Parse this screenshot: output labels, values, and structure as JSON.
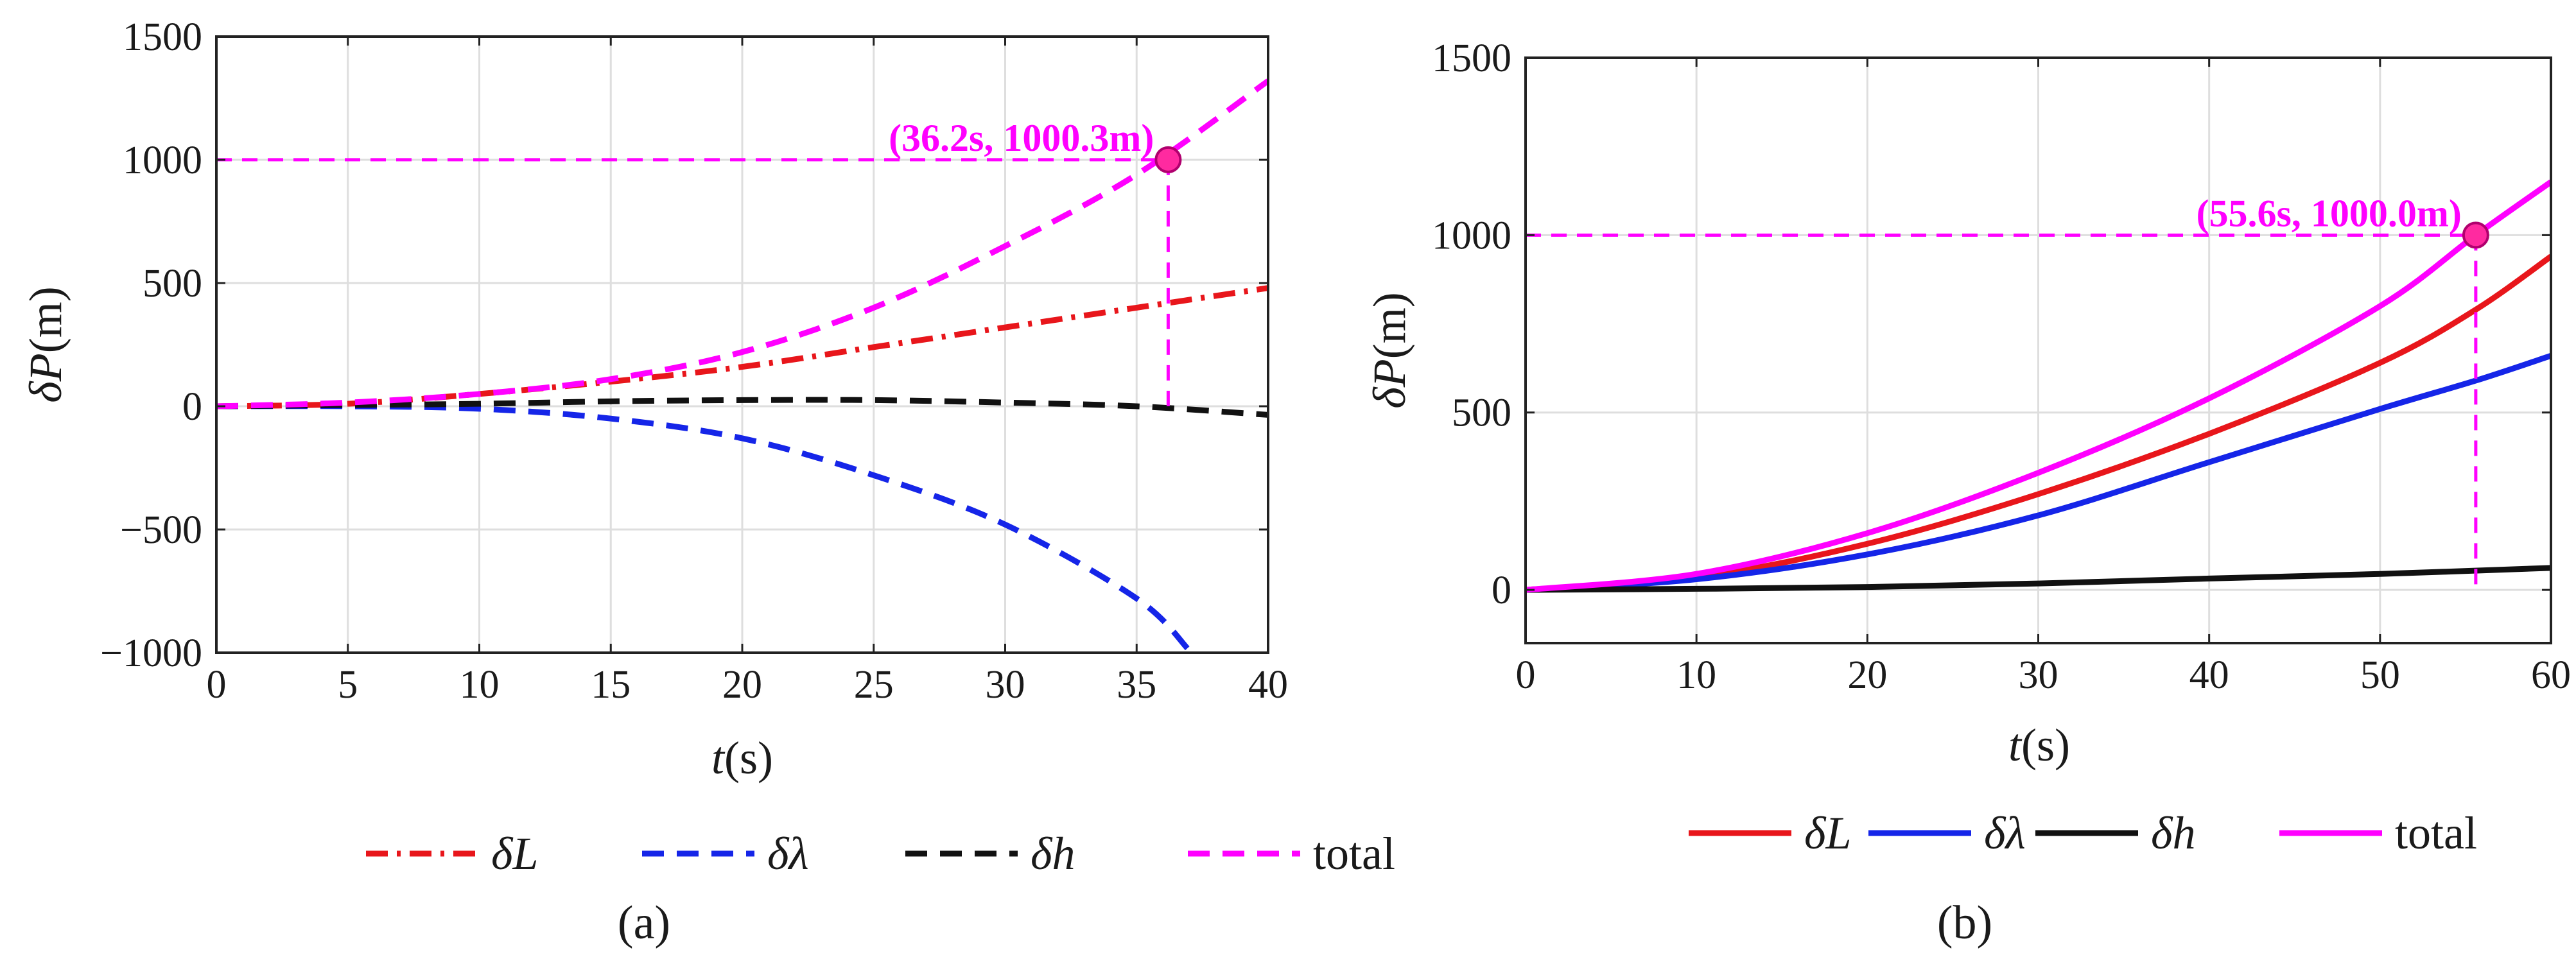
{
  "colors": {
    "red": "#e8161b",
    "blue": "#1525e8",
    "black": "#111111",
    "magenta": "#ff00ff",
    "marker": "#ff2aa0"
  },
  "chart_data": [
    {
      "panel_label": "(a)",
      "type": "line",
      "xlabel": {
        "italic": "t",
        "rest": "(s)"
      },
      "ylabel": {
        "italic": "δP",
        "rest": "(m)"
      },
      "xlim": [
        0,
        40
      ],
      "ylim": [
        -1000,
        1500
      ],
      "xticks": [
        0,
        5,
        10,
        15,
        20,
        25,
        30,
        35,
        40
      ],
      "yticks": [
        -1000,
        -500,
        0,
        500,
        1000,
        1500
      ],
      "ytick_labels": [
        "−1000",
        "−500",
        "0",
        "500",
        "1000",
        "1500"
      ],
      "grid": true,
      "series": [
        {
          "key": "dL",
          "name": "δL",
          "style": "dashdot",
          "color": "#e8161b",
          "x": [
            0,
            5,
            10,
            15,
            20,
            25,
            30,
            35,
            40
          ],
          "y": [
            0,
            10,
            50,
            100,
            160,
            240,
            320,
            400,
            480
          ]
        },
        {
          "key": "dlam",
          "name": "δλ",
          "style": "dashed",
          "color": "#1525e8",
          "x": [
            0,
            5,
            10,
            15,
            20,
            25,
            30,
            35,
            37
          ],
          "y": [
            0,
            0,
            -10,
            -50,
            -130,
            -280,
            -480,
            -780,
            -990
          ]
        },
        {
          "key": "dh",
          "name": "δh",
          "style": "dashed",
          "color": "#111111",
          "x": [
            0,
            5,
            10,
            15,
            20,
            25,
            30,
            35,
            40
          ],
          "y": [
            0,
            5,
            10,
            20,
            25,
            25,
            15,
            0,
            -35
          ]
        },
        {
          "key": "total",
          "name": "total",
          "style": "dashed",
          "color": "#ff00ff",
          "x": [
            0,
            5,
            10,
            15,
            20,
            25,
            30,
            35,
            40
          ],
          "y": [
            0,
            15,
            50,
            110,
            220,
            400,
            650,
            940,
            1320
          ]
        }
      ],
      "annotation": {
        "x": 36.2,
        "y": 1000.3,
        "text": "(36.2s, 1000.3m)"
      },
      "legend": [
        {
          "label": "δL",
          "style": "dashdot",
          "color": "#e8161b"
        },
        {
          "label": "δλ",
          "style": "dashed",
          "color": "#1525e8"
        },
        {
          "label": "δh",
          "style": "dashed",
          "color": "#111111"
        },
        {
          "label": "total",
          "style": "dashed",
          "color": "#ff00ff"
        }
      ],
      "legend_position": "bottom-center"
    },
    {
      "panel_label": "(b)",
      "type": "line",
      "xlabel": {
        "italic": "t",
        "rest": "(s)"
      },
      "ylabel": {
        "italic": "δP",
        "rest": "(m)"
      },
      "xlim": [
        0,
        60
      ],
      "ylim": [
        -150,
        1500
      ],
      "xticks": [
        0,
        10,
        20,
        30,
        40,
        50,
        60
      ],
      "yticks": [
        0,
        500,
        1000,
        1500
      ],
      "ytick_labels": [
        "0",
        "500",
        "1000",
        "1500"
      ],
      "grid": true,
      "series": [
        {
          "key": "dL",
          "name": "δL",
          "style": "solid",
          "color": "#e8161b",
          "x": [
            0,
            10,
            20,
            30,
            40,
            50,
            55.6,
            60
          ],
          "y": [
            0,
            35,
            130,
            270,
            440,
            640,
            790,
            940
          ]
        },
        {
          "key": "dlam",
          "name": "δλ",
          "style": "solid",
          "color": "#1525e8",
          "x": [
            0,
            10,
            20,
            30,
            40,
            50,
            55.6,
            60
          ],
          "y": [
            0,
            30,
            100,
            210,
            360,
            510,
            590,
            660
          ]
        },
        {
          "key": "dh",
          "name": "δh",
          "style": "solid",
          "color": "#111111",
          "x": [
            0,
            10,
            20,
            30,
            40,
            50,
            60
          ],
          "y": [
            0,
            3,
            8,
            18,
            32,
            45,
            62
          ]
        },
        {
          "key": "total",
          "name": "total",
          "style": "solid",
          "color": "#ff00ff",
          "x": [
            0,
            10,
            20,
            30,
            40,
            50,
            55.6,
            60
          ],
          "y": [
            0,
            45,
            160,
            330,
            540,
            800,
            1000,
            1150
          ]
        }
      ],
      "annotation": {
        "x": 55.6,
        "y": 1000.0,
        "text": "(55.6s, 1000.0m)"
      },
      "legend": [
        {
          "label": "δL",
          "style": "solid",
          "color": "#e8161b"
        },
        {
          "label": "δλ",
          "style": "solid",
          "color": "#1525e8"
        },
        {
          "label": "δh",
          "style": "solid",
          "color": "#111111"
        },
        {
          "label": "total",
          "style": "solid",
          "color": "#ff00ff"
        }
      ],
      "legend_position": "bottom-center"
    }
  ]
}
